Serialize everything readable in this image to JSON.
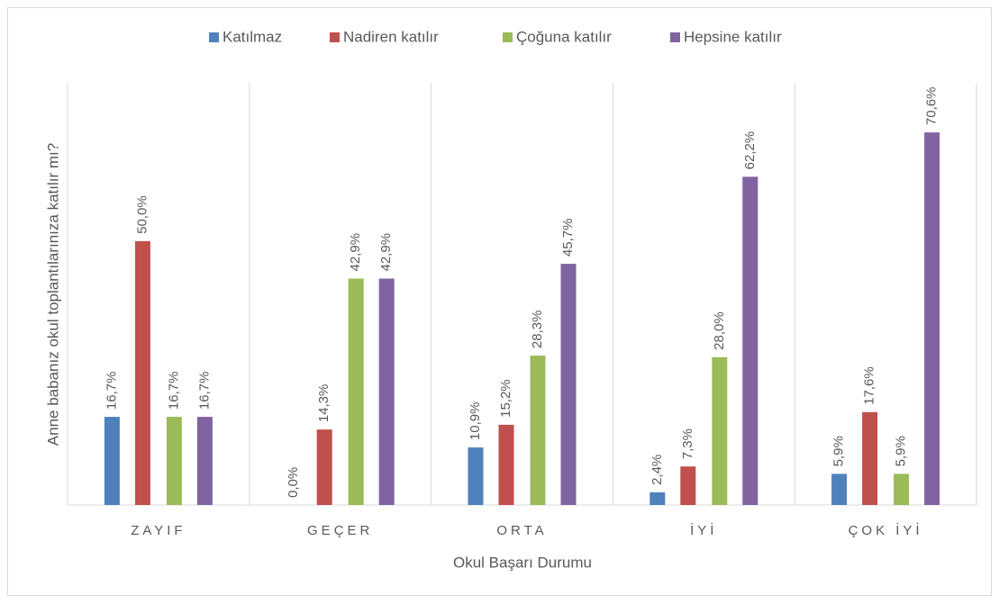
{
  "chart_data": {
    "type": "bar",
    "x_label": "Okul Başarı Durumu",
    "y_label": "Anne babanız okul toplantılarınıza katılır mı?",
    "categories": [
      "ZAYIF",
      "GEÇER",
      "ORTA",
      "İYİ",
      "ÇOK İYİ"
    ],
    "series": [
      {
        "name": "Katılmaz",
        "color": "#4f81bd",
        "values": [
          16.7,
          0.0,
          10.9,
          2.4,
          5.9
        ],
        "value_labels": [
          "16,7%",
          "0,0%",
          "10,9%",
          "2,4%",
          "5,9%"
        ]
      },
      {
        "name": "Nadiren katılır",
        "color": "#c0504d",
        "values": [
          50.0,
          14.3,
          15.2,
          7.3,
          17.6
        ],
        "value_labels": [
          "50,0%",
          "14,3%",
          "15,2%",
          "7,3%",
          "17,6%"
        ]
      },
      {
        "name": "Çoğuna katılır",
        "color": "#9bbb59",
        "values": [
          16.7,
          42.9,
          28.3,
          28.0,
          5.9
        ],
        "value_labels": [
          "16,7%",
          "42,9%",
          "28,3%",
          "28,0%",
          "5,9%"
        ]
      },
      {
        "name": "Hepsine katılır",
        "color": "#8064a2",
        "values": [
          16.7,
          42.9,
          45.7,
          62.2,
          70.6
        ],
        "value_labels": [
          "16,7%",
          "42,9%",
          "45,7%",
          "62,2%",
          "70,6%"
        ]
      }
    ],
    "ylim": [
      0,
      80
    ],
    "legend": "top"
  }
}
